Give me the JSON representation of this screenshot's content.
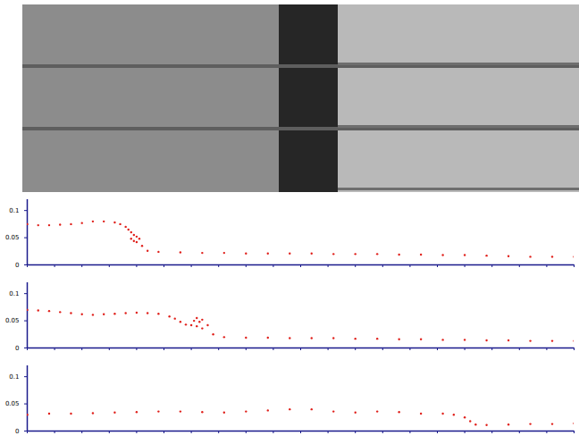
{
  "chart_data": [
    {
      "type": "scatter",
      "marker": "dot",
      "color": "#e0201b",
      "tick_labels": "y",
      "xlim": [
        0,
        100
      ],
      "xticks": [
        0,
        5,
        10,
        15,
        20,
        25,
        30,
        35,
        40,
        45,
        50,
        55,
        60,
        65,
        70,
        75,
        80,
        85,
        90,
        95,
        100
      ],
      "ylim": [
        0,
        0.12
      ],
      "yticks": [
        0,
        0.05,
        0.1
      ],
      "x": [
        0,
        2,
        4,
        6,
        8,
        10,
        12,
        14,
        16,
        17,
        18,
        18.5,
        19,
        19,
        19.5,
        19.5,
        20,
        20,
        20.5,
        21,
        22,
        24,
        28,
        32,
        36,
        40,
        44,
        48,
        52,
        56,
        60,
        64,
        68,
        72,
        76,
        80,
        84,
        88,
        92,
        96,
        100
      ],
      "values": [
        0.075,
        0.073,
        0.073,
        0.074,
        0.075,
        0.077,
        0.08,
        0.08,
        0.078,
        0.075,
        0.07,
        0.065,
        0.06,
        0.048,
        0.055,
        0.044,
        0.052,
        0.042,
        0.048,
        0.035,
        0.026,
        0.024,
        0.023,
        0.022,
        0.022,
        0.021,
        0.021,
        0.021,
        0.021,
        0.02,
        0.02,
        0.02,
        0.019,
        0.019,
        0.018,
        0.018,
        0.017,
        0.016,
        0.015,
        0.015,
        0.015
      ]
    },
    {
      "type": "scatter",
      "marker": "dot",
      "color": "#e0201b",
      "tick_labels": "y",
      "xlim": [
        0,
        100
      ],
      "xticks": [
        0,
        5,
        10,
        15,
        20,
        25,
        30,
        35,
        40,
        45,
        50,
        55,
        60,
        65,
        70,
        75,
        80,
        85,
        90,
        95,
        100
      ],
      "ylim": [
        0,
        0.12
      ],
      "yticks": [
        0,
        0.05,
        0.1
      ],
      "x": [
        0,
        2,
        4,
        6,
        8,
        10,
        12,
        14,
        16,
        18,
        20,
        22,
        24,
        26,
        27,
        28,
        29,
        30,
        30.5,
        31,
        31,
        31.5,
        32,
        32,
        33,
        34,
        36,
        40,
        44,
        48,
        52,
        56,
        60,
        64,
        68,
        72,
        76,
        80,
        84,
        88,
        92,
        96,
        100
      ],
      "values": [
        0.07,
        0.069,
        0.068,
        0.066,
        0.064,
        0.062,
        0.061,
        0.062,
        0.063,
        0.064,
        0.065,
        0.064,
        0.063,
        0.058,
        0.054,
        0.048,
        0.043,
        0.042,
        0.05,
        0.055,
        0.04,
        0.048,
        0.052,
        0.036,
        0.042,
        0.025,
        0.02,
        0.019,
        0.019,
        0.018,
        0.018,
        0.018,
        0.017,
        0.017,
        0.016,
        0.016,
        0.015,
        0.015,
        0.014,
        0.014,
        0.013,
        0.013,
        0.013
      ]
    },
    {
      "type": "scatter",
      "marker": "dot",
      "color": "#e0201b",
      "tick_labels": "y",
      "xlim": [
        0,
        100
      ],
      "xticks": [
        0,
        5,
        10,
        15,
        20,
        25,
        30,
        35,
        40,
        45,
        50,
        55,
        60,
        65,
        70,
        75,
        80,
        85,
        90,
        95,
        100
      ],
      "ylim": [
        0,
        0.12
      ],
      "yticks": [
        0,
        0.05,
        0.1
      ],
      "x": [
        0,
        4,
        8,
        12,
        16,
        20,
        24,
        28,
        32,
        36,
        40,
        44,
        48,
        52,
        56,
        60,
        64,
        68,
        72,
        76,
        78,
        80,
        81,
        82,
        84,
        88,
        92,
        96,
        100
      ],
      "values": [
        0.03,
        0.032,
        0.032,
        0.033,
        0.034,
        0.035,
        0.036,
        0.036,
        0.035,
        0.034,
        0.036,
        0.038,
        0.04,
        0.04,
        0.036,
        0.034,
        0.036,
        0.035,
        0.032,
        0.032,
        0.03,
        0.025,
        0.018,
        0.012,
        0.011,
        0.012,
        0.013,
        0.013,
        0.014
      ]
    }
  ]
}
